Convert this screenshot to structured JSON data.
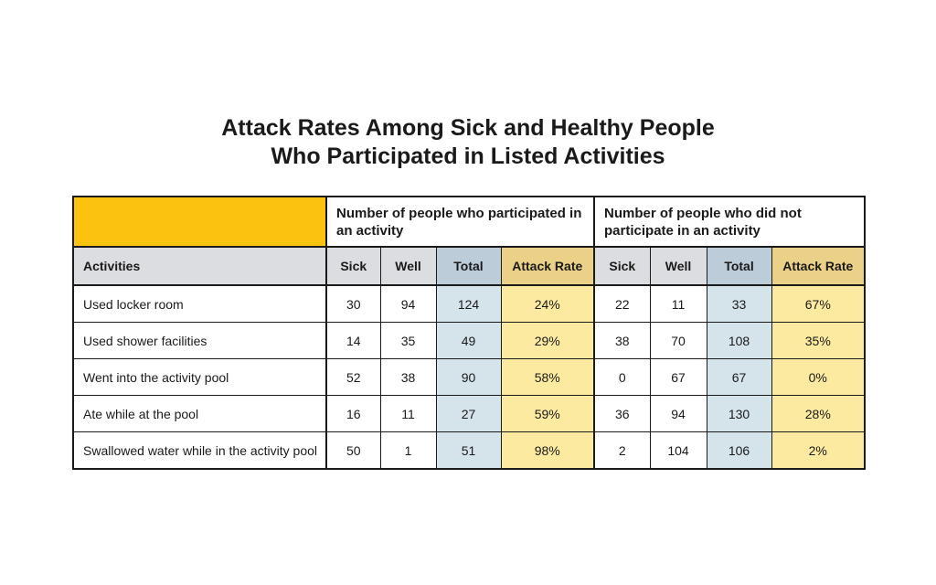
{
  "title": {
    "line1": "Attack Rates Among Sick and Healthy People",
    "line2": "Who Participated in Listed Activities"
  },
  "colors": {
    "swatch": "#fbc30f",
    "total_header": "#bccdd9",
    "total_cell": "#d5e3eb",
    "rate_header": "#ead187",
    "rate_cell": "#fbea9f",
    "subheader": "#dcdde0"
  },
  "table": {
    "groups": {
      "participated": "Number of people who participated in an activity",
      "not_participated": "Number of people who did not participate in an activity"
    },
    "columns": {
      "activities": "Activities",
      "sick": "Sick",
      "well": "Well",
      "total": "Total",
      "attack_rate": "Attack Rate"
    },
    "rows": [
      {
        "activity": "Used locker room",
        "p_sick": "30",
        "p_well": "94",
        "p_total": "124",
        "p_rate": "24%",
        "n_sick": "22",
        "n_well": "11",
        "n_total": "33",
        "n_rate": "67%"
      },
      {
        "activity": "Used shower facilities",
        "p_sick": "14",
        "p_well": "35",
        "p_total": "49",
        "p_rate": "29%",
        "n_sick": "38",
        "n_well": "70",
        "n_total": "108",
        "n_rate": "35%"
      },
      {
        "activity": "Went into the activity pool",
        "p_sick": "52",
        "p_well": "38",
        "p_total": "90",
        "p_rate": "58%",
        "n_sick": "0",
        "n_well": "67",
        "n_total": "67",
        "n_rate": "0%"
      },
      {
        "activity": "Ate while at the pool",
        "p_sick": "16",
        "p_well": "11",
        "p_total": "27",
        "p_rate": "59%",
        "n_sick": "36",
        "n_well": "94",
        "n_total": "130",
        "n_rate": "28%"
      },
      {
        "activity": "Swallowed water while in the activity pool",
        "p_sick": "50",
        "p_well": "1",
        "p_total": "51",
        "p_rate": "98%",
        "n_sick": "2",
        "n_well": "104",
        "n_total": "106",
        "n_rate": "2%"
      }
    ]
  }
}
